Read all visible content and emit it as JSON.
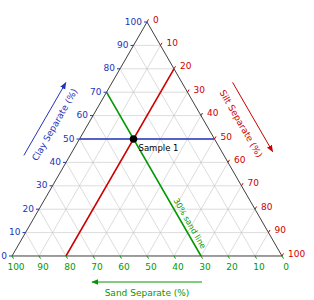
{
  "chart_data": {
    "type": "ternary",
    "axes": {
      "clay": {
        "label": "Clay Separate (%)",
        "color": "#2233bb",
        "lim": [
          0,
          100
        ],
        "ticks": [
          0,
          10,
          20,
          30,
          40,
          50,
          60,
          70,
          80,
          90,
          100
        ]
      },
      "silt": {
        "label": "Silt Separate (%)",
        "color": "#cc0000",
        "lim": [
          0,
          100
        ],
        "ticks": [
          0,
          10,
          20,
          30,
          40,
          50,
          60,
          70,
          80,
          90,
          100
        ]
      },
      "sand": {
        "label": "Sand Separate (%)",
        "color": "#009900",
        "lim": [
          0,
          100
        ],
        "ticks": [
          0,
          10,
          20,
          30,
          40,
          50,
          60,
          70,
          80,
          90,
          100
        ]
      }
    },
    "grid": true,
    "lines": [
      {
        "axis": "clay",
        "value": 50,
        "color": "#2233bb"
      },
      {
        "axis": "silt",
        "value": 20,
        "color": "#cc0000"
      },
      {
        "axis": "sand",
        "value": 30,
        "color": "#009900",
        "label": "30% sand line"
      }
    ],
    "points": [
      {
        "name": "Sample 1",
        "clay": 50,
        "silt": 20,
        "sand": 30,
        "color": "#000000",
        "marker": "circle"
      }
    ]
  }
}
